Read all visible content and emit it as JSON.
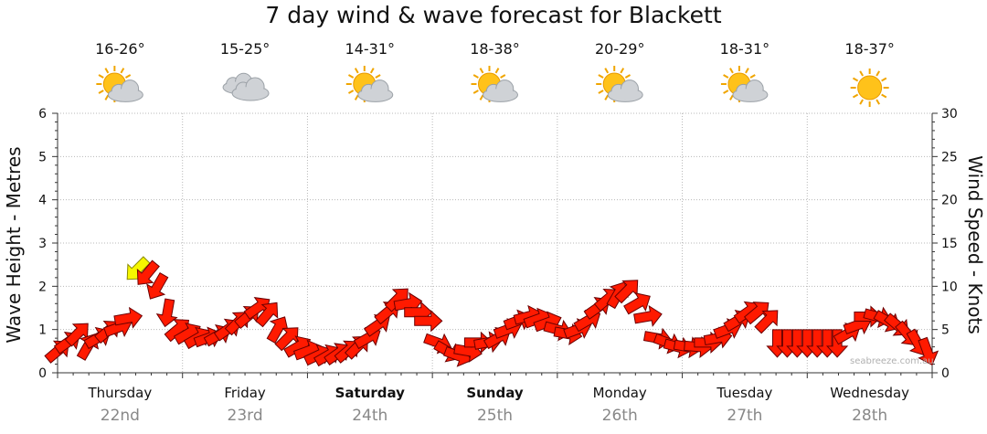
{
  "chart_data": {
    "type": "line",
    "title": "7 day wind & wave forecast for Blackett",
    "ylabel_left": "Wave Height - Metres",
    "ylabel_right": "Wind Speed - Knots",
    "ylim_left": [
      0,
      6
    ],
    "ylim_right": [
      0,
      30
    ],
    "yticks_left": [
      "0",
      "1",
      "2",
      "3",
      "4",
      "5",
      "6"
    ],
    "yticks_right": [
      "0",
      "5",
      "10",
      "15",
      "20",
      "25",
      "30"
    ],
    "grid": true,
    "days": [
      {
        "day": "Thursday",
        "date": "22nd",
        "temp": "16-26°",
        "icon": "partly-cloudy-icon",
        "bold": false
      },
      {
        "day": "Friday",
        "date": "23rd",
        "temp": "15-25°",
        "icon": "cloudy-icon",
        "bold": false
      },
      {
        "day": "Saturday",
        "date": "24th",
        "temp": "14-31°",
        "icon": "partly-cloudy-icon",
        "bold": true
      },
      {
        "day": "Sunday",
        "date": "25th",
        "temp": "18-38°",
        "icon": "partly-cloudy-icon",
        "bold": true
      },
      {
        "day": "Monday",
        "date": "26th",
        "temp": "20-29°",
        "icon": "partly-cloudy-icon",
        "bold": false
      },
      {
        "day": "Tuesday",
        "date": "27th",
        "temp": "18-31°",
        "icon": "partly-cloudy-icon",
        "bold": false
      },
      {
        "day": "Wednesday",
        "date": "28th",
        "temp": "18-37°",
        "icon": "sunny-icon",
        "bold": false
      }
    ],
    "series": [
      {
        "name": "Wind Speed - Knots",
        "x_day": [
          0.0,
          0.08,
          0.16,
          0.24,
          0.32,
          0.4,
          0.48,
          0.56,
          0.64,
          0.72,
          0.8,
          0.88,
          0.96,
          1.04,
          1.12,
          1.2,
          1.28,
          1.36,
          1.44,
          1.52,
          1.6,
          1.68,
          1.76,
          1.84,
          1.92,
          2.0,
          2.08,
          2.16,
          2.24,
          2.32,
          2.4,
          2.48,
          2.56,
          2.64,
          2.72,
          2.8,
          2.88,
          2.96,
          3.04,
          3.12,
          3.2,
          3.28,
          3.36,
          3.44,
          3.52,
          3.6,
          3.68,
          3.76,
          3.84,
          3.92,
          4.0,
          4.08,
          4.16,
          4.24,
          4.32,
          4.4,
          4.48,
          4.56,
          4.64,
          4.72,
          4.8,
          4.88,
          4.96,
          5.04,
          5.12,
          5.2,
          5.28,
          5.36,
          5.44,
          5.52,
          5.6,
          5.68,
          5.76,
          5.84,
          5.92,
          6.0,
          6.08,
          6.16,
          6.24,
          6.32,
          6.4,
          6.48,
          6.56,
          6.64,
          6.72,
          6.8,
          6.88,
          6.96
        ],
        "values": [
          2.5,
          3.5,
          4.5,
          3.0,
          4.0,
          4.8,
          5.2,
          6.3,
          12.0,
          11.5,
          10.0,
          7.0,
          5.0,
          4.5,
          4.0,
          4.0,
          4.3,
          5.0,
          5.8,
          6.5,
          7.5,
          6.8,
          5.0,
          4.0,
          3.0,
          2.5,
          2.0,
          2.0,
          2.2,
          2.5,
          3.0,
          4.0,
          5.5,
          7.0,
          8.5,
          8.0,
          7.0,
          6.0,
          3.5,
          2.5,
          2.0,
          2.5,
          3.5,
          3.5,
          4.0,
          5.0,
          6.0,
          6.5,
          6.2,
          5.8,
          5.0,
          4.5,
          5.0,
          6.0,
          7.5,
          8.5,
          9.0,
          9.5,
          8.0,
          6.5,
          4.0,
          3.5,
          3.0,
          3.0,
          3.0,
          3.5,
          4.0,
          5.0,
          6.0,
          7.0,
          7.0,
          6.0,
          3.5,
          3.5,
          3.5,
          3.5,
          3.5,
          3.5,
          3.5,
          4.5,
          5.5,
          6.5,
          6.5,
          6.0,
          5.5,
          4.5,
          3.5,
          2.5
        ],
        "angle_deg": [
          -40,
          -35,
          -45,
          -60,
          -30,
          -40,
          -20,
          -10,
          135,
          130,
          120,
          100,
          -40,
          -30,
          -30,
          -20,
          -30,
          -35,
          -45,
          -40,
          -35,
          -50,
          -60,
          -45,
          -30,
          -20,
          -25,
          -30,
          -35,
          -40,
          -45,
          -30,
          -35,
          -40,
          -45,
          -10,
          0,
          0,
          20,
          30,
          20,
          10,
          0,
          -10,
          -30,
          -20,
          -20,
          -15,
          -20,
          -20,
          15,
          10,
          -20,
          -30,
          -35,
          -40,
          -60,
          -45,
          -30,
          -10,
          10,
          20,
          15,
          10,
          5,
          0,
          -10,
          -20,
          -30,
          -35,
          -40,
          -45,
          90,
          90,
          90,
          90,
          90,
          90,
          90,
          -30,
          -20,
          0,
          15,
          30,
          40,
          50,
          60,
          70
        ],
        "highlight_index": 8
      }
    ]
  },
  "footer": {
    "watermark": "seabreeze.com.au"
  }
}
